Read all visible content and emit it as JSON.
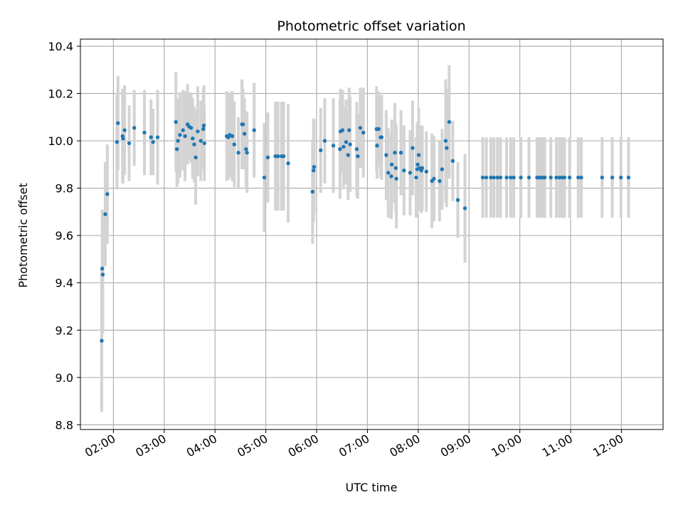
{
  "chart_data": {
    "type": "scatter",
    "title": "Photometric offset variation",
    "xlabel": "UTC time",
    "ylabel": "Photometric offset",
    "x_unit": "hours UTC",
    "xlim": [
      1.35,
      12.82
    ],
    "ylim": [
      8.78,
      10.43
    ],
    "grid": true,
    "x_ticks": [
      2,
      3,
      4,
      5,
      6,
      7,
      8,
      9,
      10,
      11,
      12
    ],
    "x_tick_labels": [
      "02:00",
      "03:00",
      "04:00",
      "05:00",
      "06:00",
      "07:00",
      "08:00",
      "09:00",
      "10:00",
      "11:00",
      "12:00"
    ],
    "y_ticks": [
      8.8,
      9.0,
      9.2,
      9.4,
      9.6,
      9.8,
      10.0,
      10.2,
      10.4
    ],
    "y_tick_labels": [
      "8.8",
      "9.0",
      "9.2",
      "9.4",
      "9.6",
      "9.8",
      "10.0",
      "10.2",
      "10.4"
    ],
    "colors": {
      "marker": "#1f77b4",
      "errorbar": "#d3d3d3",
      "grid": "#b0b0b0",
      "axes": "#000000"
    },
    "series": [
      {
        "name": "photometric offset",
        "points": [
          [
            1.77,
            9.155,
            0.3
          ],
          [
            1.78,
            9.46,
            0.25
          ],
          [
            1.79,
            9.435,
            0.25
          ],
          [
            1.84,
            9.69,
            0.22
          ],
          [
            1.88,
            9.775,
            0.21
          ],
          [
            2.07,
            9.995,
            0.2
          ],
          [
            2.09,
            10.075,
            0.2
          ],
          [
            2.18,
            10.02,
            0.2
          ],
          [
            2.19,
            10.01,
            0.19
          ],
          [
            2.22,
            10.045,
            0.19
          ],
          [
            2.31,
            9.99,
            0.16
          ],
          [
            2.41,
            10.055,
            0.16
          ],
          [
            2.61,
            10.035,
            0.18
          ],
          [
            2.74,
            10.015,
            0.16
          ],
          [
            2.78,
            9.995,
            0.14
          ],
          [
            2.87,
            10.015,
            0.2
          ],
          [
            3.23,
            10.08,
            0.21
          ],
          [
            3.25,
            9.965,
            0.16
          ],
          [
            3.27,
            10.0,
            0.18
          ],
          [
            3.31,
            10.025,
            0.18
          ],
          [
            3.37,
            10.045,
            0.17
          ],
          [
            3.41,
            10.02,
            0.19
          ],
          [
            3.46,
            10.07,
            0.17
          ],
          [
            3.49,
            10.06,
            0.14
          ],
          [
            3.53,
            10.055,
            0.15
          ],
          [
            3.56,
            10.01,
            0.17
          ],
          [
            3.59,
            9.985,
            0.16
          ],
          [
            3.62,
            9.93,
            0.2
          ],
          [
            3.66,
            10.04,
            0.19
          ],
          [
            3.72,
            10.0,
            0.17
          ],
          [
            3.77,
            10.05,
            0.17
          ],
          [
            3.78,
            10.065,
            0.17
          ],
          [
            3.79,
            9.99,
            0.16
          ],
          [
            4.23,
            10.02,
            0.19
          ],
          [
            4.26,
            10.015,
            0.18
          ],
          [
            4.29,
            10.025,
            0.18
          ],
          [
            4.34,
            10.02,
            0.19
          ],
          [
            4.38,
            9.985,
            0.18
          ],
          [
            4.46,
            9.95,
            0.15
          ],
          [
            4.53,
            10.07,
            0.19
          ],
          [
            4.55,
            10.07,
            0.15
          ],
          [
            4.58,
            10.03,
            0.15
          ],
          [
            4.61,
            9.965,
            0.16
          ],
          [
            4.63,
            9.95,
            0.17
          ],
          [
            4.77,
            10.045,
            0.2
          ],
          [
            4.97,
            9.845,
            0.23
          ],
          [
            5.04,
            9.93,
            0.19
          ],
          [
            5.19,
            9.935,
            0.23
          ],
          [
            5.24,
            9.935,
            0.23
          ],
          [
            5.31,
            9.935,
            0.23
          ],
          [
            5.35,
            9.935,
            0.23
          ],
          [
            5.44,
            9.905,
            0.25
          ],
          [
            5.92,
            9.785,
            0.22
          ],
          [
            5.94,
            9.875,
            0.22
          ],
          [
            5.95,
            9.89,
            0.2
          ],
          [
            6.08,
            9.96,
            0.18
          ],
          [
            6.16,
            10.0,
            0.18
          ],
          [
            6.33,
            9.98,
            0.2
          ],
          [
            6.46,
            9.965,
            0.21
          ],
          [
            6.47,
            10.04,
            0.18
          ],
          [
            6.51,
            10.045,
            0.17
          ],
          [
            6.53,
            9.975,
            0.17
          ],
          [
            6.58,
            9.995,
            0.18
          ],
          [
            6.62,
            9.94,
            0.19
          ],
          [
            6.64,
            10.045,
            0.18
          ],
          [
            6.66,
            9.985,
            0.2
          ],
          [
            6.79,
            9.965,
            0.2
          ],
          [
            6.81,
            9.935,
            0.18
          ],
          [
            6.86,
            10.055,
            0.17
          ],
          [
            6.92,
            10.035,
            0.19
          ],
          [
            7.18,
            10.05,
            0.18
          ],
          [
            7.19,
            9.98,
            0.14
          ],
          [
            7.22,
            10.05,
            0.16
          ],
          [
            7.26,
            10.015,
            0.17
          ],
          [
            7.28,
            10.015,
            0.18
          ],
          [
            7.37,
            9.94,
            0.19
          ],
          [
            7.41,
            9.865,
            0.19
          ],
          [
            7.47,
            9.85,
            0.18
          ],
          [
            7.48,
            9.9,
            0.19
          ],
          [
            7.54,
            9.95,
            0.21
          ],
          [
            7.56,
            9.885,
            0.19
          ],
          [
            7.57,
            9.84,
            0.21
          ],
          [
            7.66,
            9.95,
            0.18
          ],
          [
            7.72,
            9.875,
            0.19
          ],
          [
            7.84,
            9.865,
            0.18
          ],
          [
            7.89,
            9.97,
            0.2
          ],
          [
            7.96,
            9.845,
            0.17
          ],
          [
            7.98,
            9.88,
            0.19
          ],
          [
            7.99,
            9.9,
            0.18
          ],
          [
            8.01,
            9.94,
            0.2
          ],
          [
            8.03,
            9.885,
            0.18
          ],
          [
            8.06,
            9.875,
            0.18
          ],
          [
            8.08,
            9.885,
            0.18
          ],
          [
            8.16,
            9.87,
            0.17
          ],
          [
            8.27,
            9.83,
            0.2
          ],
          [
            8.31,
            9.84,
            0.18
          ],
          [
            8.42,
            9.83,
            0.17
          ],
          [
            8.47,
            9.88,
            0.17
          ],
          [
            8.54,
            10.0,
            0.26
          ],
          [
            8.56,
            9.97,
            0.25
          ],
          [
            8.61,
            10.08,
            0.24
          ],
          [
            8.68,
            9.915,
            0.17
          ],
          [
            8.78,
            9.75,
            0.16
          ],
          [
            8.92,
            9.715,
            0.23
          ],
          [
            9.27,
            9.845,
            0.17
          ],
          [
            9.34,
            9.845,
            0.17
          ],
          [
            9.43,
            9.845,
            0.17
          ],
          [
            9.49,
            9.845,
            0.17
          ],
          [
            9.56,
            9.845,
            0.17
          ],
          [
            9.62,
            9.845,
            0.17
          ],
          [
            9.74,
            9.845,
            0.17
          ],
          [
            9.82,
            9.845,
            0.17
          ],
          [
            9.88,
            9.845,
            0.17
          ],
          [
            10.02,
            9.845,
            0.17
          ],
          [
            10.18,
            9.845,
            0.17
          ],
          [
            10.34,
            9.845,
            0.17
          ],
          [
            10.39,
            9.845,
            0.17
          ],
          [
            10.42,
            9.845,
            0.17
          ],
          [
            10.46,
            9.845,
            0.17
          ],
          [
            10.49,
            9.845,
            0.17
          ],
          [
            10.61,
            9.845,
            0.17
          ],
          [
            10.72,
            9.845,
            0.17
          ],
          [
            10.78,
            9.845,
            0.17
          ],
          [
            10.83,
            9.845,
            0.17
          ],
          [
            10.88,
            9.845,
            0.17
          ],
          [
            10.98,
            9.845,
            0.17
          ],
          [
            11.15,
            9.845,
            0.17
          ],
          [
            11.21,
            9.845,
            0.17
          ],
          [
            11.62,
            9.845,
            0.17
          ],
          [
            11.82,
            9.845,
            0.17
          ],
          [
            11.99,
            9.845,
            0.17
          ],
          [
            12.14,
            9.845,
            0.17
          ]
        ]
      }
    ]
  }
}
